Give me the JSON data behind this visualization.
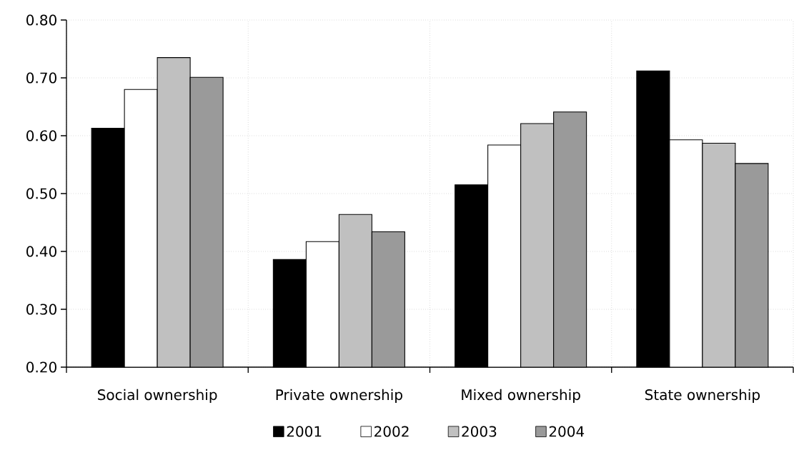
{
  "chart_data": {
    "type": "bar",
    "categories": [
      "Social ownership",
      "Private ownership",
      "Mixed ownership",
      "State ownership"
    ],
    "series": [
      {
        "name": "2001",
        "color": "#000000",
        "values": [
          0.613,
          0.386,
          0.515,
          0.712
        ]
      },
      {
        "name": "2002",
        "color": "#ffffff",
        "values": [
          0.68,
          0.417,
          0.584,
          0.593
        ]
      },
      {
        "name": "2003",
        "color": "#c0c0c0",
        "values": [
          0.735,
          0.464,
          0.621,
          0.587
        ]
      },
      {
        "name": "2004",
        "color": "#9a9a9a",
        "values": [
          0.701,
          0.434,
          0.641,
          0.552
        ]
      }
    ],
    "ylim": [
      0.2,
      0.8
    ],
    "yticks": [
      {
        "value": 0.2,
        "label": "0.20"
      },
      {
        "value": 0.3,
        "label": "0.30"
      },
      {
        "value": 0.4,
        "label": "0.40"
      },
      {
        "value": 0.5,
        "label": "0.50"
      },
      {
        "value": 0.6,
        "label": "0.60"
      },
      {
        "value": 0.7,
        "label": "0.70"
      },
      {
        "value": 0.8,
        "label": "0.80"
      }
    ],
    "grid": true,
    "legend": "bottom"
  }
}
